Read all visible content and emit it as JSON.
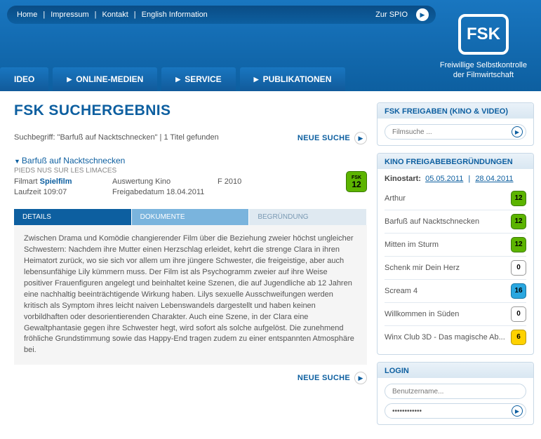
{
  "topnav": {
    "items": [
      "Home",
      "Impressum",
      "Kontakt",
      "English Information"
    ],
    "right_label": "Zur SPIO"
  },
  "brand": {
    "logo_text": "FSK",
    "subtitle_line1": "Freiwillige Selbstkontrolle",
    "subtitle_line2": "der Filmwirtschaft"
  },
  "mainnav": [
    "IDEO",
    "ONLINE-MEDIEN",
    "SERVICE",
    "PUBLIKATIONEN"
  ],
  "page": {
    "title": "FSK SUCHERGEBNIS",
    "search_line": "Suchbegriff: \"Barfuß auf Nacktschnecken\"  |  1 Titel gefunden",
    "neue_suche": "NEUE SUCHE"
  },
  "result": {
    "title": "Barfuß auf Nacktschnecken",
    "subtitle": "PIEDS NUS SUR LES LIMACES",
    "filmart_label": "Filmart",
    "filmart_value": "Spielfilm",
    "auswertung": "Auswertung Kino",
    "year": "F 2010",
    "laufzeit_label": "Laufzeit 109:07",
    "freigabe": "Freigabedatum 18.04.2011",
    "rating": "12",
    "rating_class": "b12"
  },
  "tabs": {
    "details": "DETAILS",
    "dokumente": "DOKUMENTE",
    "begruendung": "BEGRÜNDUNG"
  },
  "description": "Zwischen Drama und Komödie changierender Film über die Beziehung zweier höchst ungleicher Schwestern: Nachdem ihre Mutter einen Herzschlag erleidet, kehrt die strenge Clara in ihren Heimatort zurück, wo sie sich vor allem um ihre jüngere Schwester, die freigeistige, aber auch lebensunfähige Lily kümmern muss. Der Film ist als Psychogramm zweier auf ihre Weise positiver Frauenfiguren angelegt und beinhaltet keine Szenen, die auf Jugendliche ab 12 Jahren eine nachhaltig beeinträchtigende Wirkung haben. Lilys sexuelle Ausschweifungen werden kritisch als Symptom ihres leicht naiven Lebenswandels dargestellt und haben keinen vorbildhaften oder desorientierenden Charakter. Auch eine Szene, in der Clara eine Gewaltphantasie gegen ihre Schwester hegt, wird sofort als solche aufgelöst. Die zunehmend fröhliche Grundstimmung sowie das Happy-End tragen zudem zu einer entspannten Atmosphäre bei.",
  "side_freigaben": {
    "title": "FSK FREIGABEN (KINO & VIDEO)",
    "placeholder": "Filmsuche ..."
  },
  "side_kino": {
    "title": "KINO FREIGABEBEGRÜNDUNGEN",
    "kinostart_label": "Kinostart:",
    "date1": "05.05.2011",
    "date2": "28.04.2011",
    "items": [
      {
        "name": "Arthur",
        "rating": "12",
        "cls": "b12"
      },
      {
        "name": "Barfuß auf Nacktschnecken",
        "rating": "12",
        "cls": "b12"
      },
      {
        "name": "Mitten im Sturm",
        "rating": "12",
        "cls": "b12"
      },
      {
        "name": "Schenk mir Dein Herz",
        "rating": "0",
        "cls": "b0"
      },
      {
        "name": "Scream 4",
        "rating": "16",
        "cls": "b16"
      },
      {
        "name": "Willkommen in Süden",
        "rating": "0",
        "cls": "b0"
      },
      {
        "name": "Winx Club 3D - Das magische Ab...",
        "rating": "6",
        "cls": "b6"
      }
    ]
  },
  "login": {
    "title": "LOGIN",
    "user_placeholder": "Benutzername...",
    "pass_value": "••••••••••••"
  }
}
